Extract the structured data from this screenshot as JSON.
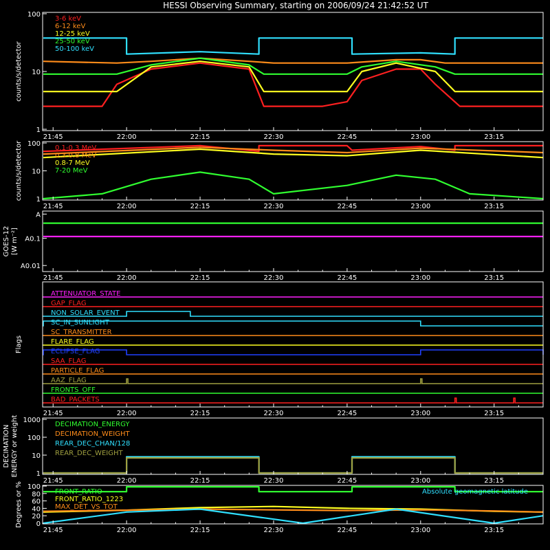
{
  "title": "HESSI Observing Summary, starting on 2006/09/24 21:42:52 UT",
  "time_ticks": [
    "21:45",
    "22:00",
    "22:15",
    "22:30",
    "22:45",
    "23:00",
    "23:15"
  ],
  "chart_data": [
    {
      "type": "line",
      "panel": "energy-bands",
      "ylabel": "counts/s/detector",
      "log": true,
      "ylim": [
        1,
        100
      ],
      "yticks": [
        "1",
        "10",
        "100"
      ],
      "xlim": [
        "21:42:52",
        "23:25"
      ],
      "legend_placement": "top-left",
      "series": [
        {
          "name": "3-6 keV",
          "color": "#ff2020",
          "x": [
            "21:43",
            "21:55",
            "21:58",
            "22:05",
            "22:15",
            "22:25",
            "22:28",
            "22:40",
            "22:45",
            "22:48",
            "22:55",
            "23:00",
            "23:03",
            "23:08",
            "23:25"
          ],
          "values": [
            2.5,
            2.5,
            6,
            11,
            14,
            11,
            2.5,
            2.5,
            3,
            7,
            11,
            11,
            6,
            2.5,
            2.5
          ]
        },
        {
          "name": "6-12 keV",
          "color": "#ff8c1a",
          "x": [
            "21:43",
            "21:58",
            "22:05",
            "22:15",
            "22:25",
            "22:30",
            "22:45",
            "22:55",
            "23:00",
            "23:05",
            "23:25"
          ],
          "values": [
            15,
            14,
            15,
            17,
            15,
            14,
            14,
            16,
            16,
            14,
            14
          ]
        },
        {
          "name": "12-25 keV",
          "color": "#ffff20",
          "x": [
            "21:43",
            "21:58",
            "22:05",
            "22:15",
            "22:25",
            "22:28",
            "22:45",
            "22:48",
            "22:55",
            "23:03",
            "23:07",
            "23:25"
          ],
          "values": [
            4.5,
            4.5,
            12,
            15,
            12,
            4.5,
            4.5,
            10,
            14,
            10,
            4.5,
            4.5
          ]
        },
        {
          "name": "25-50 keV",
          "color": "#30ff30",
          "x": [
            "21:43",
            "21:58",
            "22:05",
            "22:15",
            "22:25",
            "22:28",
            "22:45",
            "22:48",
            "22:55",
            "23:03",
            "23:07",
            "23:25"
          ],
          "values": [
            9,
            9,
            13,
            17,
            13,
            9,
            9,
            12,
            15,
            12,
            9,
            9
          ]
        },
        {
          "name": "50-100 keV",
          "color": "#30e0ff",
          "x": [
            "21:43",
            "22:00",
            "22:00",
            "22:15",
            "22:27",
            "22:27",
            "22:46",
            "22:46",
            "23:00",
            "23:07",
            "23:07",
            "23:25"
          ],
          "values": [
            38,
            38,
            20,
            22,
            20,
            38,
            38,
            20,
            21,
            20,
            38,
            38
          ]
        }
      ]
    },
    {
      "type": "line",
      "panel": "high-energy",
      "ylabel": "counts/s/detector",
      "log": true,
      "ylim": [
        1,
        100
      ],
      "yticks": [
        "1",
        "10",
        "100"
      ],
      "legend_placement": "top-left",
      "series": [
        {
          "name": "0.1-0.3 MeV",
          "color": "#ff2020",
          "x": [
            "21:43",
            "22:15",
            "22:27",
            "22:27",
            "22:45",
            "22:46",
            "23:00",
            "23:07",
            "23:07",
            "23:25"
          ],
          "values": [
            50,
            80,
            50,
            80,
            80,
            55,
            75,
            55,
            80,
            80
          ]
        },
        {
          "name": "0.3-0.8 MeV",
          "color": "#ff8c1a",
          "x": [
            "21:43",
            "22:15",
            "22:30",
            "22:45",
            "23:00",
            "23:25"
          ],
          "values": [
            40,
            70,
            55,
            45,
            65,
            45
          ]
        },
        {
          "name": "0.8-7 MeV",
          "color": "#ffff20",
          "x": [
            "21:43",
            "22:15",
            "22:30",
            "22:45",
            "23:00",
            "23:25"
          ],
          "values": [
            30,
            60,
            40,
            35,
            55,
            30
          ]
        },
        {
          "name": "7-20 MeV",
          "color": "#30ff30",
          "x": [
            "21:43",
            "21:55",
            "22:05",
            "22:15",
            "22:25",
            "22:30",
            "22:45",
            "22:55",
            "23:03",
            "23:10",
            "23:25"
          ],
          "values": [
            1,
            1.5,
            5,
            9,
            5,
            1.5,
            3,
            7,
            5,
            1.5,
            1
          ]
        }
      ]
    },
    {
      "type": "line",
      "panel": "goes",
      "ylabel": "GOES-12",
      "ylabel2": "[W m⁻²]",
      "log": true,
      "yticks": [
        "A",
        "A0.1",
        "A0.01"
      ],
      "series": [
        {
          "name": "",
          "color": "#30ff30",
          "x": [
            "21:43",
            "23:25"
          ],
          "values": [
            0.55,
            0.55
          ]
        },
        {
          "name": "",
          "color": "#ff20ff",
          "x": [
            "21:43",
            "22:00",
            "22:30",
            "23:00",
            "23:25"
          ],
          "values": [
            0.13,
            0.12,
            0.1,
            0.1,
            0.1
          ]
        }
      ]
    },
    {
      "type": "line",
      "panel": "flags",
      "ylabel": "Flags",
      "flags": [
        {
          "name": "ATTENUATOR_STATE",
          "color": "#ff20ff",
          "on": []
        },
        {
          "name": "GAP_FLAG",
          "color": "#ff2020",
          "on": []
        },
        {
          "name": "NON_SOLAR_EVENT",
          "color": "#30e0ff",
          "on": [
            [
              "22:00",
              "22:13"
            ]
          ]
        },
        {
          "name": "SC_IN_SUNLIGHT",
          "color": "#30e0ff",
          "on": [
            [
              "21:43",
              "23:00"
            ]
          ]
        },
        {
          "name": "SC_TRANSMITTER",
          "color": "#ff8c1a",
          "on": []
        },
        {
          "name": "FLARE_FLAG",
          "color": "#ffff20",
          "on": []
        },
        {
          "name": "ECLIPSE_FLAG",
          "color": "#2040ff",
          "on": [
            [
              "21:43",
              "22:00"
            ],
            [
              "23:00",
              "23:25"
            ]
          ]
        },
        {
          "name": "SAA_FLAG",
          "color": "#ff2020",
          "on": []
        },
        {
          "name": "PARTICLE_FLAG",
          "color": "#ff8c1a",
          "on": []
        },
        {
          "name": "AAZ_FLAG",
          "color": "#a0a040",
          "on": [
            [
              "22:00",
              "22:00"
            ],
            [
              "23:00",
              "23:00"
            ]
          ]
        },
        {
          "name": "FRONTS_OFF",
          "color": "#30ff30",
          "on": []
        },
        {
          "name": "BAD_PACKETS",
          "color": "#ff2020",
          "on": [
            [
              "23:07",
              "23:07"
            ],
            [
              "23:19",
              "23:19"
            ]
          ]
        }
      ]
    },
    {
      "type": "line",
      "panel": "decimation",
      "ylabel": "DECIMATION",
      "ylabel2": "ENERGY or weight",
      "log": true,
      "ylim": [
        1,
        1000
      ],
      "yticks": [
        "1",
        "10",
        "100",
        "1000"
      ],
      "legend_placement": "top-left",
      "series": [
        {
          "name": "DECIMATION_ENERGY",
          "color": "#30ff30",
          "x": [],
          "values": []
        },
        {
          "name": "DECIMATION_WEIGHT",
          "color": "#ff8c1a",
          "x": [],
          "values": []
        },
        {
          "name": "REAR_DEC_CHAN/128",
          "color": "#30e0ff",
          "x": [
            "21:43",
            "22:00",
            "22:00",
            "22:27",
            "22:27",
            "22:46",
            "22:46",
            "23:07",
            "23:07",
            "23:25"
          ],
          "values": [
            1,
            1,
            8,
            8,
            1,
            1,
            8,
            8,
            1,
            1
          ]
        },
        {
          "name": "REAR_DEC_WEIGHT",
          "color": "#a0a040",
          "x": [
            "21:43",
            "22:00",
            "22:00",
            "22:27",
            "22:27",
            "22:46",
            "22:46",
            "23:07",
            "23:07",
            "23:25"
          ],
          "values": [
            1,
            1,
            7,
            7,
            1,
            1,
            7,
            7,
            1,
            1
          ]
        }
      ]
    },
    {
      "type": "line",
      "panel": "geometry",
      "ylabel": "Degrees or %",
      "ylim": [
        0,
        100
      ],
      "yticks": [
        "0",
        "20",
        "40",
        "60",
        "80",
        "100"
      ],
      "legend_placement": "top-left",
      "series": [
        {
          "name": "FRONT_RATIO",
          "color": "#30ff30",
          "x": [
            "21:43",
            "22:00",
            "22:00",
            "22:27",
            "22:27",
            "22:46",
            "22:46",
            "23:07",
            "23:07",
            "23:25"
          ],
          "values": [
            85,
            85,
            98,
            98,
            85,
            85,
            98,
            98,
            85,
            85
          ]
        },
        {
          "name": "FRONT_RATIO_1223",
          "color": "#ffff20",
          "x": [
            "21:43",
            "22:00",
            "22:15",
            "22:30",
            "22:45",
            "23:00",
            "23:15",
            "23:25"
          ],
          "values": [
            30,
            35,
            42,
            45,
            40,
            38,
            32,
            30
          ]
        },
        {
          "name": "MAX_DET_VS_TOT",
          "color": "#ff8c1a",
          "x": [
            "21:43",
            "22:00",
            "22:15",
            "22:30",
            "22:45",
            "23:00",
            "23:15",
            "23:25"
          ],
          "values": [
            32,
            35,
            38,
            36,
            34,
            36,
            33,
            30
          ]
        },
        {
          "name": "Absolute geomagnetic latitude",
          "color": "#30e0ff",
          "x": [
            "21:43",
            "22:00",
            "22:15",
            "22:36",
            "22:55",
            "23:15",
            "23:25"
          ],
          "values": [
            0,
            30,
            38,
            0,
            38,
            0,
            20
          ]
        }
      ]
    }
  ]
}
